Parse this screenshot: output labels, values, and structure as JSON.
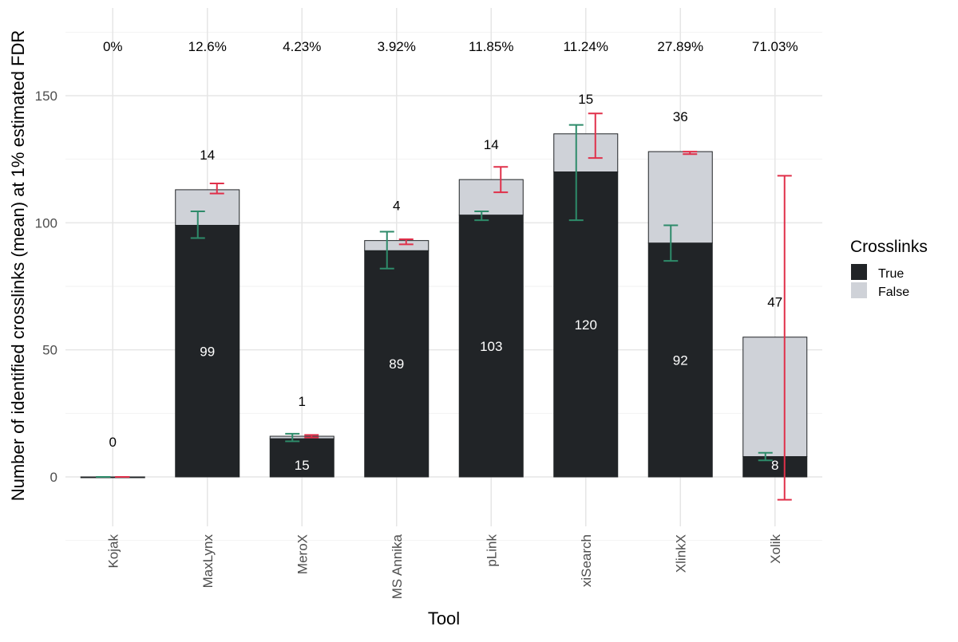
{
  "chart_data": {
    "type": "bar",
    "stacked": true,
    "title": "",
    "xlabel": "Tool",
    "ylabel": "Number of identified crosslinks (mean) at 1% estimated FDR",
    "ylim": [
      -12,
      180
    ],
    "yticks": [
      0,
      50,
      100,
      150
    ],
    "grid": true,
    "categories": [
      "Kojak",
      "MaxLynx",
      "MeroX",
      "MS Annika",
      "pLink",
      "xiSearch",
      "XlinkX",
      "Xolik"
    ],
    "fdr_labels": [
      "0%",
      "12.6%",
      "4.23%",
      "3.92%",
      "11.85%",
      "11.24%",
      "27.89%",
      "71.03%"
    ],
    "series": [
      {
        "name": "True",
        "color": "#212427",
        "values": [
          0,
          99,
          15,
          89,
          103,
          120,
          92,
          8
        ],
        "labels": [
          "",
          "99",
          "15",
          "89",
          "103",
          "120",
          "92",
          "8"
        ],
        "error_color": "#2e8b6a",
        "error_low": [
          0,
          94,
          14,
          82,
          101,
          101,
          85,
          6.5
        ],
        "error_high": [
          0,
          104.5,
          17,
          96.5,
          104.5,
          138.5,
          99,
          9.5
        ]
      },
      {
        "name": "False",
        "color": "#cfd2d8",
        "values": [
          0,
          14,
          1,
          4,
          14,
          15,
          36,
          47
        ],
        "labels": [
          "0",
          "14",
          "1",
          "4",
          "14",
          "15",
          "36",
          "47"
        ],
        "error_color": "#e0304a",
        "error_low": [
          0,
          111.5,
          15.5,
          91.5,
          112,
          125.5,
          127,
          -9
        ],
        "error_high": [
          0,
          115.5,
          16.5,
          93.5,
          122,
          143,
          128,
          118.5
        ]
      }
    ],
    "legend": {
      "title": "Crosslinks",
      "position": "right",
      "items": [
        {
          "label": "True",
          "color": "#212427"
        },
        {
          "label": "False",
          "color": "#cfd2d8"
        }
      ]
    }
  }
}
